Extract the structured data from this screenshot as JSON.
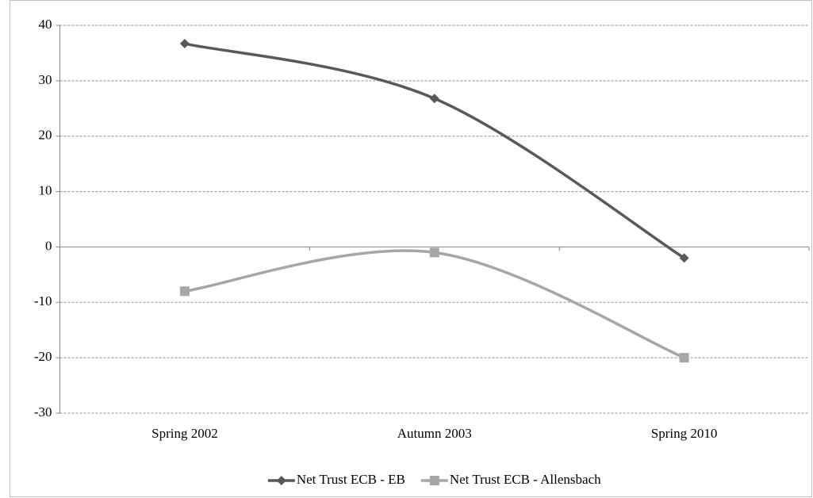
{
  "chart_data": {
    "type": "line",
    "smooth": true,
    "categories": [
      "Spring 2002",
      "Autumn 2003",
      "Spring 2010"
    ],
    "series": [
      {
        "name": "Net Trust ECB - EB",
        "color": "#595959",
        "marker": "diamond",
        "values": [
          36.7,
          26.8,
          -2
        ]
      },
      {
        "name": "Net Trust ECB - Allensbach",
        "color": "#a6a6a6",
        "marker": "square",
        "values": [
          -8,
          -1,
          -20
        ]
      }
    ],
    "ylim": [
      -30,
      40
    ],
    "yticks": [
      -30,
      -20,
      -10,
      0,
      10,
      20,
      30,
      40
    ],
    "grid": true,
    "legend": "bottom"
  }
}
